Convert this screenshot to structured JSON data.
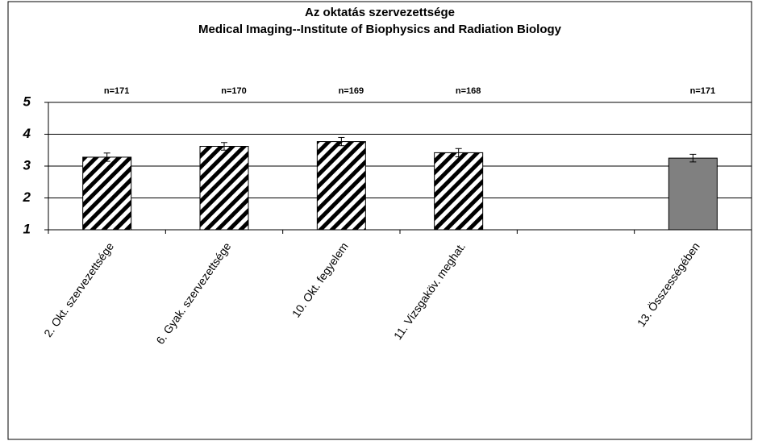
{
  "chart_data": {
    "type": "bar",
    "title": "Az oktatás szervezettsége",
    "subtitle": "Medical Imaging--Institute of Biophysics and Radiation Biology",
    "categories": [
      "2. Okt. szervezettsége",
      "6. Gyak. szervezettsége",
      "10. Okt. fegyelem",
      "11. Vizsgaköv. meghat.",
      null,
      "13. Összességében"
    ],
    "values": [
      3.28,
      3.62,
      3.77,
      3.42,
      null,
      3.25
    ],
    "errors": [
      0.13,
      0.12,
      0.13,
      0.13,
      null,
      0.12
    ],
    "annotations": [
      "n=171",
      "n=170",
      "n=169",
      "n=168",
      null,
      "n=171"
    ],
    "colors": [
      "#000000",
      "#000000",
      "#000000",
      "#000000",
      null,
      "#808080"
    ],
    "hatched": [
      true,
      true,
      true,
      true,
      null,
      false
    ],
    "ylim": [
      1,
      5
    ],
    "yticks": [
      1,
      2,
      3,
      4,
      5
    ],
    "grid": true
  }
}
